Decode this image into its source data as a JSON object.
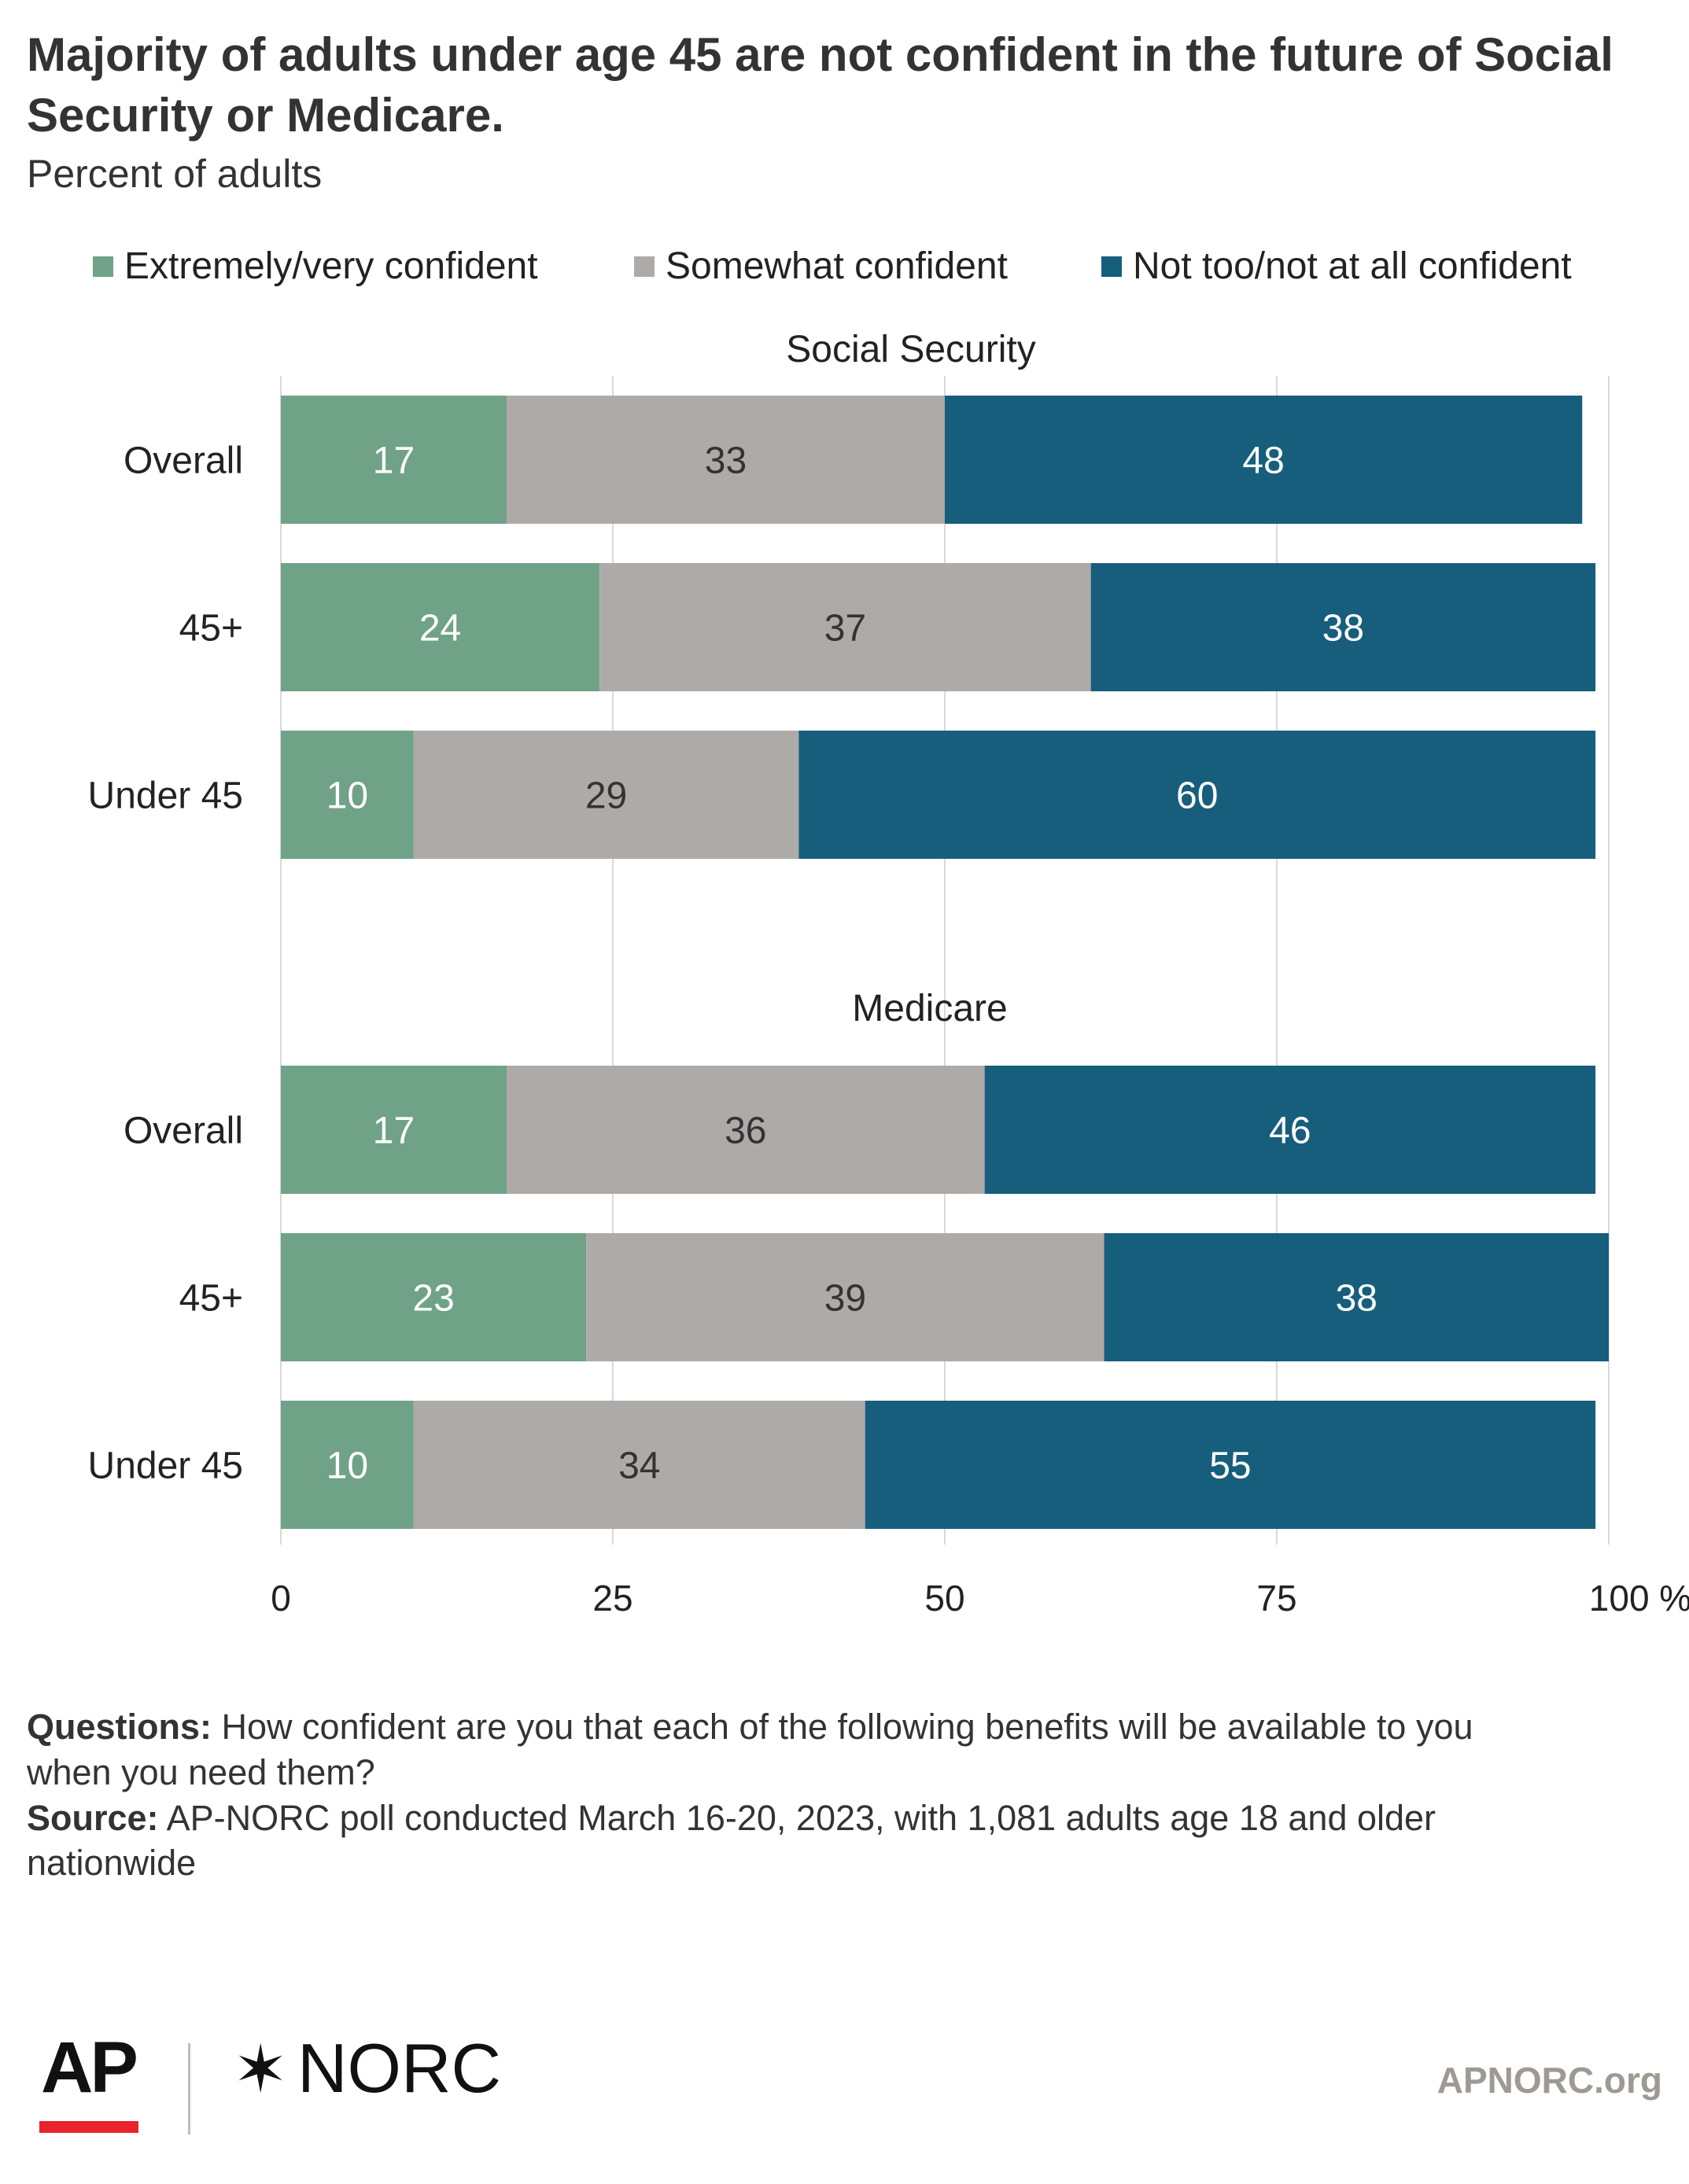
{
  "header": {
    "title_line1": "Majority of adults under age 45 are not confident in the future of Social",
    "title_line2": "Security or Medicare.",
    "subtitle": "Percent of adults"
  },
  "colors": {
    "extremely_very": "#6fa287",
    "somewhat": "#adaaa8",
    "not_too": "#175e7c",
    "grid": "#d9d9d9",
    "ap_red": "#e8242b",
    "link": "#9e9a93"
  },
  "chart_data": {
    "type": "bar",
    "orientation": "horizontal",
    "stacked": true,
    "xlim": [
      0,
      100
    ],
    "x_ticks": [
      "0",
      "25",
      "50",
      "75",
      "100 %"
    ],
    "grid": true,
    "legend_position": "top",
    "series": [
      {
        "name": "Extremely/very confident"
      },
      {
        "name": "Somewhat confident"
      },
      {
        "name": "Not too/not at all confident"
      }
    ],
    "panels": [
      {
        "title": "Social Security",
        "categories": [
          "Overall",
          "45+",
          "Under 45"
        ],
        "values": [
          [
            17,
            33,
            48
          ],
          [
            24,
            37,
            38
          ],
          [
            10,
            29,
            60
          ]
        ]
      },
      {
        "title": "Medicare",
        "categories": [
          "Overall",
          "45+",
          "Under 45"
        ],
        "values": [
          [
            17,
            36,
            46
          ],
          [
            23,
            39,
            38
          ],
          [
            10,
            34,
            55
          ]
        ]
      }
    ]
  },
  "notes": {
    "questions_label": "Questions:",
    "questions_line1": " How confident are you that each of the following benefits will be available to you",
    "questions_line2": "when you need them?",
    "source_label": "Source:",
    "source_line1": " AP-NORC poll conducted March 16-20, 2023, with 1,081 adults age 18 and older",
    "source_line2": "nationwide"
  },
  "footer": {
    "ap_logo": "AP",
    "norc_logo": "NORC",
    "norc_star": "✶",
    "website": "APNORC.org"
  }
}
